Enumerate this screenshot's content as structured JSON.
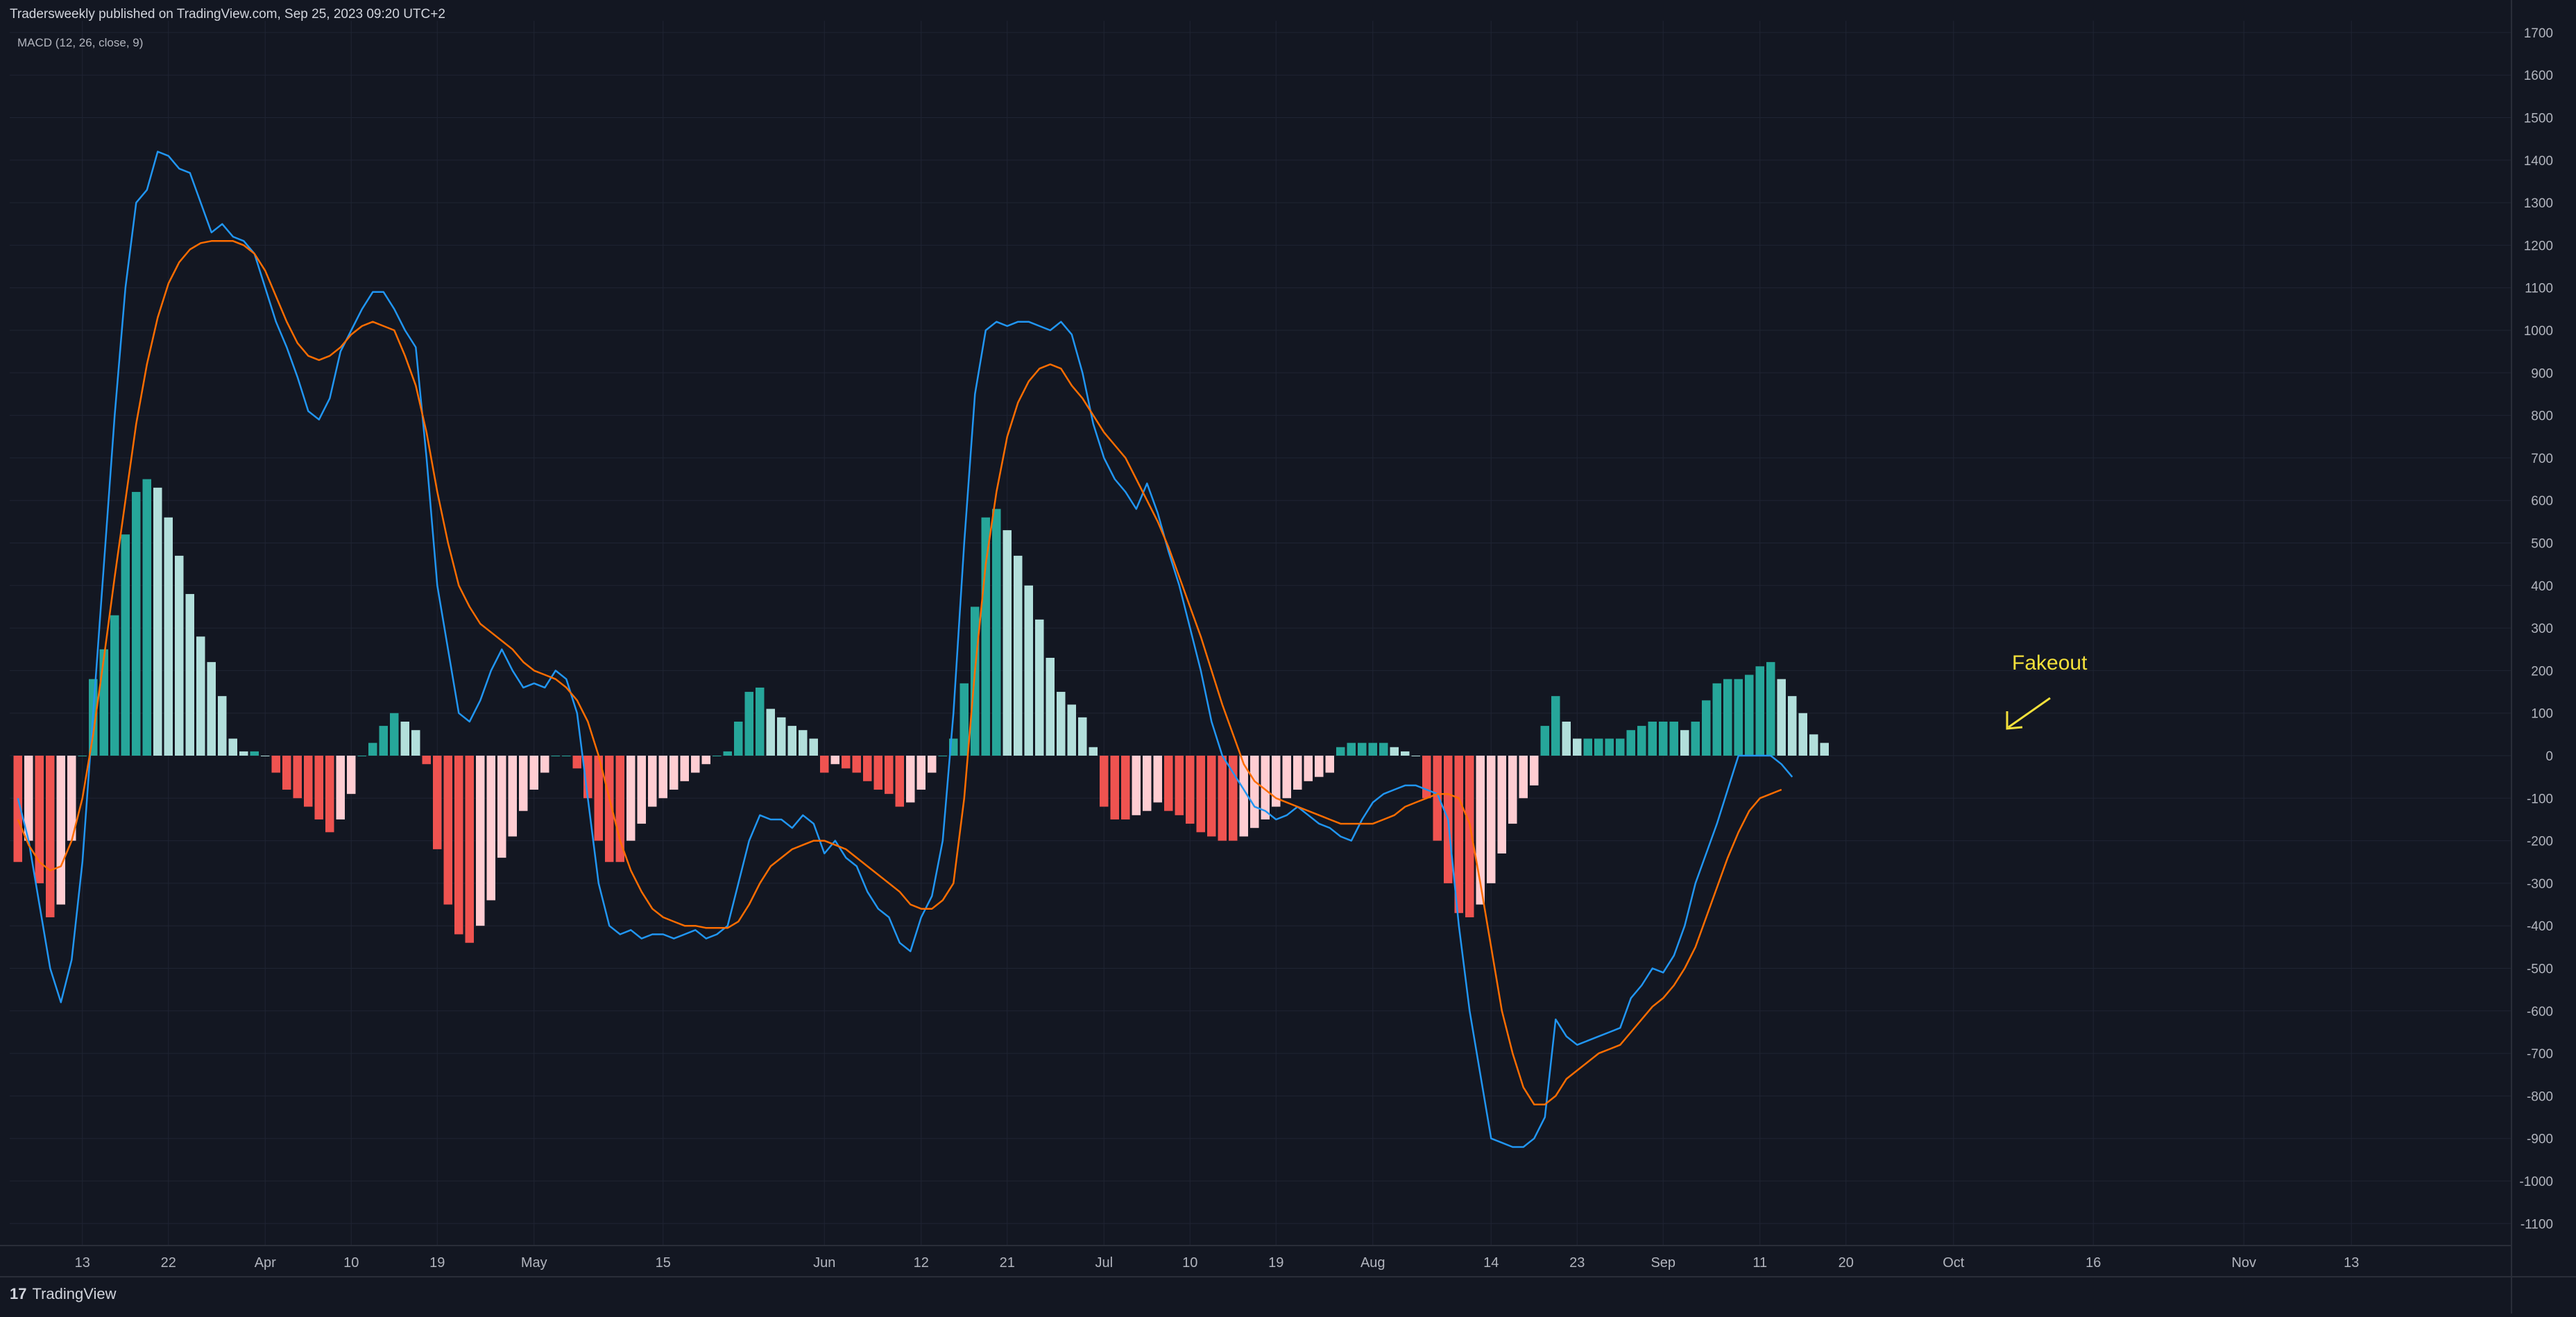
{
  "header": {
    "published_caption": "Tradersweekly published on TradingView.com, Sep 25, 2023 09:20 UTC+2"
  },
  "indicator_label": "MACD (12, 26, close, 9)",
  "footer": {
    "brand": "TradingView",
    "logo_glyph": "17"
  },
  "annotation": {
    "text": "Fakeout",
    "color": "#f5e13b"
  },
  "colors": {
    "background": "#131722",
    "grid": "#1f2433",
    "axis_text": "#b2b5be",
    "macd_line": "#2196f3",
    "signal_line": "#ff6d00",
    "hist_pos_strong": "#26a69a",
    "hist_pos_weak": "#b2dfdb",
    "hist_neg_strong": "#ef5350",
    "hist_neg_weak": "#ffcdd2"
  },
  "chart_data": {
    "type": "line",
    "title": "MACD (12, 26, close, 9)",
    "ylim": [
      -1150,
      1700
    ],
    "y_ticks": [
      1700,
      1600,
      1500,
      1400,
      1300,
      1200,
      1100,
      1000,
      900,
      800,
      700,
      600,
      500,
      400,
      300,
      200,
      100,
      0,
      -100,
      -200,
      -300,
      -400,
      -500,
      -600,
      -700,
      -800,
      -900,
      -1000,
      -1100
    ],
    "x_tick_labels": [
      "13",
      "22",
      "Apr",
      "10",
      "19",
      "May",
      "15",
      "Jun",
      "12",
      "21",
      "Jul",
      "10",
      "19",
      "Aug",
      "14",
      "23",
      "Sep",
      "11",
      "20",
      "Oct",
      "16",
      "Nov",
      "13"
    ],
    "x_tick_bar_index": [
      6,
      14,
      23,
      31,
      39,
      48,
      60,
      75,
      84,
      92,
      101,
      109,
      117,
      126,
      137,
      145,
      153,
      162,
      170,
      180,
      193,
      207,
      217
    ],
    "grid": true,
    "bars_total_span": 224,
    "series": [
      {
        "name": "MACD",
        "values": [
          -100,
          -200,
          -350,
          -500,
          -580,
          -480,
          -250,
          100,
          450,
          800,
          1100,
          1300,
          1330,
          1420,
          1410,
          1380,
          1370,
          1300,
          1230,
          1250,
          1220,
          1210,
          1180,
          1100,
          1020,
          960,
          890,
          810,
          790,
          840,
          950,
          1000,
          1050,
          1090,
          1090,
          1050,
          1000,
          960,
          700,
          400,
          250,
          100,
          80,
          130,
          200,
          250,
          200,
          160,
          170,
          160,
          200,
          180,
          100,
          -100,
          -300,
          -400,
          -420,
          -410,
          -430,
          -420,
          -420,
          -430,
          -420,
          -410,
          -430,
          -420,
          -400,
          -300,
          -200,
          -140,
          -150,
          -150,
          -170,
          -140,
          -160,
          -230,
          -200,
          -240,
          -260,
          -320,
          -360,
          -380,
          -440,
          -460,
          -380,
          -330,
          -200,
          100,
          500,
          850,
          1000,
          1020,
          1010,
          1020,
          1020,
          1010,
          1000,
          1020,
          990,
          900,
          780,
          700,
          650,
          620,
          580,
          640,
          570,
          480,
          400,
          300,
          200,
          80,
          0,
          -40,
          -80,
          -120,
          -130,
          -150,
          -140,
          -120,
          -140,
          -160,
          -170,
          -190,
          -200,
          -150,
          -110,
          -90,
          -80,
          -70,
          -70,
          -80,
          -90,
          -150,
          -400,
          -600,
          -750,
          -900,
          -910,
          -920,
          -920,
          -900,
          -850,
          -620,
          -660,
          -680,
          -670,
          -660,
          -650,
          -640,
          -570,
          -540,
          -500,
          -510,
          -470,
          -400,
          -300,
          -230,
          -160,
          -80,
          0,
          0,
          0,
          0,
          -20,
          -50
        ],
        "color": "#2196f3"
      },
      {
        "name": "Signal",
        "values": [
          -150,
          -210,
          -250,
          -270,
          -260,
          -200,
          -100,
          50,
          230,
          420,
          600,
          780,
          920,
          1030,
          1110,
          1160,
          1190,
          1205,
          1210,
          1210,
          1210,
          1200,
          1180,
          1140,
          1080,
          1020,
          970,
          940,
          930,
          940,
          960,
          990,
          1010,
          1020,
          1010,
          1000,
          940,
          870,
          760,
          620,
          500,
          400,
          350,
          310,
          290,
          270,
          250,
          220,
          200,
          190,
          180,
          160,
          130,
          80,
          0,
          -100,
          -200,
          -270,
          -320,
          -360,
          -380,
          -390,
          -400,
          -400,
          -405,
          -405,
          -405,
          -390,
          -350,
          -300,
          -260,
          -240,
          -220,
          -210,
          -200,
          -200,
          -210,
          -220,
          -240,
          -260,
          -280,
          -300,
          -320,
          -350,
          -360,
          -360,
          -340,
          -300,
          -100,
          200,
          450,
          620,
          750,
          830,
          880,
          910,
          920,
          910,
          870,
          840,
          800,
          760,
          730,
          700,
          650,
          600,
          550,
          490,
          420,
          350,
          280,
          200,
          120,
          50,
          -20,
          -60,
          -80,
          -100,
          -110,
          -120,
          -130,
          -140,
          -150,
          -160,
          -160,
          -160,
          -160,
          -150,
          -140,
          -120,
          -110,
          -100,
          -90,
          -90,
          -100,
          -160,
          -300,
          -450,
          -600,
          -700,
          -780,
          -820,
          -820,
          -800,
          -760,
          -740,
          -720,
          -700,
          -690,
          -680,
          -650,
          -620,
          -590,
          -570,
          -540,
          -500,
          -450,
          -380,
          -310,
          -240,
          -180,
          -130,
          -100,
          -90,
          -80
        ],
        "color": "#ff6d00"
      },
      {
        "name": "Histogram",
        "values": [
          -250,
          -200,
          -300,
          -380,
          -350,
          -200,
          0,
          180,
          250,
          330,
          520,
          620,
          650,
          630,
          560,
          470,
          380,
          280,
          220,
          140,
          40,
          10,
          10,
          0,
          -40,
          -80,
          -100,
          -120,
          -150,
          -180,
          -150,
          -90,
          0,
          30,
          70,
          100,
          80,
          60,
          -20,
          -220,
          -350,
          -420,
          -440,
          -400,
          -340,
          -240,
          -190,
          -130,
          -80,
          -40,
          0,
          0,
          -30,
          -100,
          -200,
          -250,
          -250,
          -200,
          -160,
          -120,
          -100,
          -80,
          -60,
          -40,
          -20,
          0,
          10,
          80,
          150,
          160,
          110,
          90,
          70,
          60,
          40,
          -40,
          -20,
          -30,
          -40,
          -60,
          -80,
          -90,
          -120,
          -110,
          -80,
          -40,
          0,
          40,
          170,
          350,
          560,
          580,
          530,
          470,
          400,
          320,
          230,
          150,
          120,
          90,
          20,
          -120,
          -150,
          -150,
          -140,
          -130,
          -110,
          -130,
          -140,
          -160,
          -180,
          -190,
          -200,
          -200,
          -190,
          -170,
          -150,
          -120,
          -100,
          -80,
          -60,
          -50,
          -40,
          20,
          30,
          30,
          30,
          30,
          20,
          10,
          0,
          -100,
          -200,
          -300,
          -370,
          -380,
          -350,
          -300,
          -230,
          -160,
          -100,
          -70,
          70,
          140,
          80,
          40,
          40,
          40,
          40,
          40,
          60,
          70,
          80,
          80,
          80,
          60,
          80,
          130,
          170,
          180,
          180,
          190,
          210,
          220,
          180,
          140,
          100,
          50,
          30
        ],
        "color_positive_strong": "#26a69a",
        "color_positive_weak": "#b2dfdb",
        "color_negative_strong": "#ef5350",
        "color_negative_weak": "#ffcdd2"
      }
    ]
  }
}
